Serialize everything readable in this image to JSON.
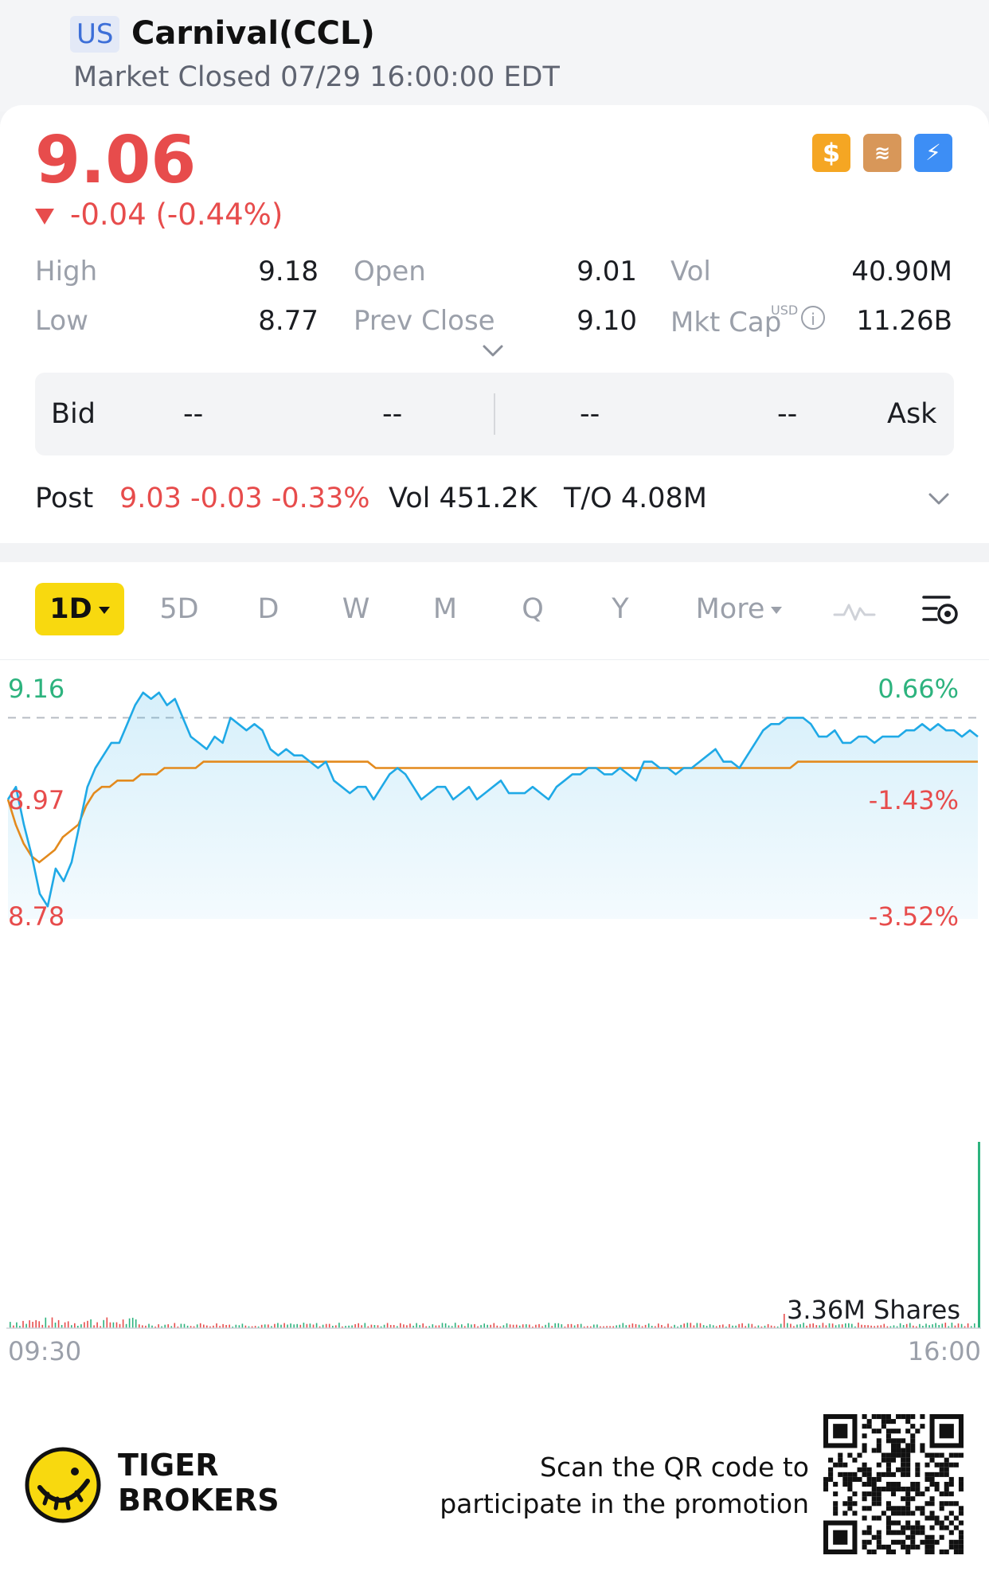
{
  "header": {
    "market_badge": "US",
    "title": "Carnival(CCL)",
    "status": "Market Closed 07/29 16:00:00 EDT"
  },
  "quote": {
    "last_price": "9.06",
    "change": "-0.04 (-0.44%)",
    "stats": {
      "high_label": "High",
      "high": "9.18",
      "low_label": "Low",
      "low": "8.77",
      "open_label": "Open",
      "open": "9.01",
      "prev_close_label": "Prev Close",
      "prev_close": "9.10",
      "vol_label": "Vol",
      "vol": "40.90M",
      "mkt_cap_label": "Mkt Cap",
      "mkt_cap_unit": "USD",
      "mkt_cap": "11.26B"
    },
    "bid_ask": {
      "bid_label": "Bid",
      "ask_label": "Ask",
      "bid_price": "--",
      "bid_size": "--",
      "ask_price": "--",
      "ask_size": "--"
    },
    "post": {
      "label": "Post",
      "price_change": "9.03 -0.03 -0.33%",
      "vol": "Vol 451.2K",
      "turnover": "T/O 4.08M"
    }
  },
  "chart_tabs": {
    "active": "1D",
    "items": [
      "5D",
      "D",
      "W",
      "M",
      "Q",
      "Y"
    ],
    "more": "More"
  },
  "colors": {
    "up": "#2db37e",
    "down": "#e74c4c",
    "price_line": "#1fa9e6",
    "avg_line": "#e38a1d",
    "active_tab": "#f8d90f"
  },
  "chart_data": {
    "type": "line",
    "x_start": "09:30",
    "x_end": "16:00",
    "y_axis_left": [
      "9.16",
      "8.97",
      "8.78"
    ],
    "y_axis_right": [
      "0.66%",
      "-1.43%",
      "-3.52%"
    ],
    "ylim": [
      8.78,
      9.16
    ],
    "reference_line": 9.1,
    "volume_label": "3.36M Shares",
    "series": [
      {
        "values": [
          8.97,
          8.99,
          8.93,
          8.88,
          8.82,
          8.8,
          8.86,
          8.84,
          8.87,
          8.93,
          8.99,
          9.02,
          9.04,
          9.06,
          9.06,
          9.09,
          9.12,
          9.14,
          9.13,
          9.14,
          9.12,
          9.13,
          9.1,
          9.07,
          9.06,
          9.05,
          9.07,
          9.06,
          9.1,
          9.09,
          9.08,
          9.09,
          9.08,
          9.05,
          9.04,
          9.05,
          9.04,
          9.04,
          9.03,
          9.02,
          9.03,
          9.0,
          8.99,
          8.98,
          8.99,
          8.99,
          8.97,
          8.99,
          9.01,
          9.02,
          9.01,
          8.99,
          8.97,
          8.98,
          8.99,
          8.99,
          8.97,
          8.98,
          8.99,
          8.97,
          8.98,
          8.99,
          9.0,
          8.98,
          8.98,
          8.98,
          8.99,
          8.98,
          8.97,
          8.99,
          9.0,
          9.01,
          9.01,
          9.02,
          9.02,
          9.01,
          9.01,
          9.02,
          9.01,
          9.0,
          9.03,
          9.03,
          9.02,
          9.02,
          9.01,
          9.02,
          9.02,
          9.03,
          9.04,
          9.05,
          9.03,
          9.03,
          9.02,
          9.04,
          9.06,
          9.08,
          9.09,
          9.09,
          9.1,
          9.1,
          9.1,
          9.09,
          9.07,
          9.07,
          9.08,
          9.06,
          9.06,
          9.07,
          9.07,
          9.06,
          9.07,
          9.07,
          9.07,
          9.08,
          9.08,
          9.09,
          9.08,
          9.09,
          9.08,
          9.08,
          9.07,
          9.08,
          9.07
        ]
      },
      {
        "values": [
          8.97,
          8.93,
          8.9,
          8.88,
          8.87,
          8.88,
          8.89,
          8.91,
          8.92,
          8.93,
          8.96,
          8.98,
          8.99,
          8.99,
          9.0,
          9.0,
          9.0,
          9.01,
          9.01,
          9.01,
          9.02,
          9.02,
          9.02,
          9.02,
          9.02,
          9.03,
          9.03,
          9.03,
          9.03,
          9.03,
          9.03,
          9.03,
          9.03,
          9.03,
          9.03,
          9.03,
          9.03,
          9.03,
          9.03,
          9.03,
          9.03,
          9.03,
          9.03,
          9.03,
          9.03,
          9.03,
          9.03,
          9.02,
          9.02,
          9.02,
          9.02,
          9.02,
          9.02,
          9.02,
          9.02,
          9.02,
          9.02,
          9.02,
          9.02,
          9.02,
          9.02,
          9.02,
          9.02,
          9.02,
          9.02,
          9.02,
          9.02,
          9.02,
          9.02,
          9.02,
          9.02,
          9.02,
          9.02,
          9.02,
          9.02,
          9.02,
          9.02,
          9.02,
          9.02,
          9.02,
          9.02,
          9.02,
          9.02,
          9.02,
          9.02,
          9.02,
          9.02,
          9.02,
          9.02,
          9.02,
          9.02,
          9.02,
          9.02,
          9.02,
          9.02,
          9.02,
          9.02,
          9.02,
          9.02,
          9.02,
          9.02,
          9.03,
          9.03,
          9.03,
          9.03,
          9.03,
          9.03,
          9.03,
          9.03,
          9.03,
          9.03,
          9.03,
          9.03,
          9.03,
          9.03,
          9.03,
          9.03,
          9.03,
          9.03,
          9.03,
          9.03,
          9.03,
          9.03,
          9.03,
          9.03
        ]
      }
    ]
  },
  "footer": {
    "brand_line1": "TIGER",
    "brand_line2": "BROKERS",
    "promo_line1": "Scan the QR code to",
    "promo_line2": "participate in the promotion"
  }
}
